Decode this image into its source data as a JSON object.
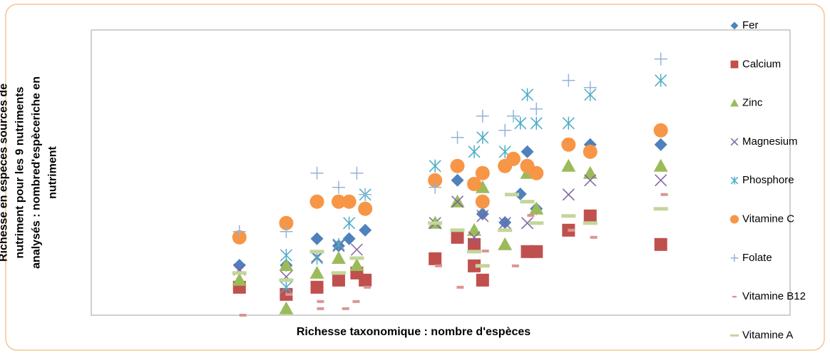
{
  "chart_data": {
    "type": "scatter",
    "xlabel": "Richesse taxonomique : nombre d'espèces",
    "ylabel": [
      "Richesse en espèces sources de",
      "nutriment pour les 9 nutriments",
      "analysés : nombred'espèceriche en",
      "nutriment"
    ],
    "xlim": [
      0,
      100
    ],
    "ylim": [
      0,
      100
    ],
    "grid": false,
    "legend": "right",
    "series": [
      {
        "name": "Fer",
        "color": "#4f81bd",
        "marker": "diamond",
        "x": [
          21.2,
          27.9,
          32.3,
          35.4,
          36.9,
          39.2,
          52.4,
          56.0,
          59.2,
          62.4,
          63.7,
          71.4,
          81.5,
          61.4
        ],
        "values": [
          17.5,
          17.5,
          26.8,
          24.3,
          26.8,
          29.8,
          47.3,
          35.5,
          32.5,
          57.3,
          37.3,
          59.8,
          59.8,
          42.5
        ]
      },
      {
        "name": "Calcium",
        "color": "#c0504d",
        "marker": "square",
        "x": [
          21.2,
          27.9,
          32.3,
          35.4,
          38.0,
          39.2,
          49.2,
          52.4,
          54.8,
          54.8,
          56.0,
          62.4,
          63.7,
          68.3,
          71.4,
          81.5
        ],
        "values": [
          9.8,
          7.3,
          9.8,
          12.3,
          14.8,
          12.3,
          19.8,
          27.3,
          24.8,
          17.3,
          12.3,
          22.3,
          22.3,
          29.8,
          34.8,
          24.8
        ]
      },
      {
        "name": "Zinc",
        "color": "#9bbb59",
        "marker": "triangle",
        "x": [
          21.2,
          27.9,
          27.9,
          32.3,
          35.4,
          38.0,
          49.2,
          52.4,
          54.8,
          56.0,
          59.2,
          62.4,
          63.7,
          68.3,
          71.4,
          81.5
        ],
        "values": [
          12.3,
          17.5,
          2.3,
          14.8,
          20,
          17.5,
          32.3,
          39.8,
          29.8,
          44.8,
          24.8,
          49.8,
          37.3,
          52.3,
          49.8,
          52.3
        ]
      },
      {
        "name": "Magnesium",
        "color": "#8064a2",
        "marker": "x",
        "x": [
          21.2,
          27.9,
          32.3,
          35.4,
          38.0,
          49.2,
          52.4,
          54.8,
          56.0,
          59.2,
          62.4,
          68.3,
          71.4,
          81.5
        ],
        "values": [
          16,
          13.5,
          20.5,
          24.3,
          23,
          32.3,
          39.8,
          27.3,
          34.8,
          32.3,
          32.3,
          42.3,
          47.3,
          47.3
        ]
      },
      {
        "name": "Phosphore",
        "color": "#4bacc6",
        "marker": "star",
        "x": [
          27.9,
          27.9,
          32.3,
          35.4,
          36.9,
          39.2,
          49.2,
          54.8,
          56.0,
          59.2,
          61.4,
          62.4,
          63.7,
          68.3,
          71.4,
          81.5
        ],
        "values": [
          21,
          9.8,
          20,
          24.8,
          32.3,
          42.3,
          52.3,
          57.3,
          62.3,
          57.3,
          67.3,
          77.3,
          67.3,
          67.3,
          77.3,
          82.3
        ]
      },
      {
        "name": "Vitamine C",
        "color": "#f79646",
        "marker": "circle",
        "x": [
          21.2,
          27.9,
          32.3,
          35.4,
          36.9,
          39.2,
          49.2,
          52.4,
          54.8,
          56.0,
          59.2,
          60.4,
          62.4,
          63.7,
          68.3,
          71.4,
          81.5,
          56.0
        ],
        "values": [
          27.3,
          32.3,
          39.8,
          39.8,
          39.8,
          37.3,
          47.3,
          52.3,
          46,
          49.8,
          52.3,
          54.8,
          52.3,
          49.8,
          59.8,
          57.3,
          64.8,
          39.8
        ]
      },
      {
        "name": "Folate",
        "color": "#95b3d7",
        "marker": "plus",
        "x": [
          21.2,
          27.9,
          32.3,
          35.4,
          38.0,
          39.2,
          49.2,
          52.4,
          56.0,
          59.2,
          60.4,
          63.7,
          68.3,
          71.4,
          81.5
        ],
        "values": [
          29.3,
          29.3,
          49.8,
          44.8,
          49.8,
          42.3,
          44.8,
          62.3,
          69.8,
          64.8,
          69.8,
          72.3,
          82.3,
          79.8,
          89.8
        ]
      },
      {
        "name": "Vitamine B12",
        "color": "#d99694",
        "marker": "dash",
        "x": [
          21.7,
          28.3,
          32.8,
          32.8,
          36.4,
          37.9,
          39.5,
          49.7,
          52.8,
          56.4,
          60.7,
          62.9,
          68.7,
          71.9,
          82.0
        ],
        "values": [
          0,
          7.3,
          4.8,
          2.3,
          2.3,
          4.8,
          9.8,
          17.3,
          9.8,
          22.5,
          17.3,
          35,
          29.8,
          27.3,
          42.3
        ]
      },
      {
        "name": "Vitamine A",
        "color": "#c3d69b",
        "marker": "wdash",
        "x": [
          21.2,
          27.9,
          32.3,
          35.4,
          38.0,
          49.2,
          52.4,
          54.8,
          56.0,
          59.2,
          60.2,
          62.4,
          63.7,
          68.3,
          71.4,
          81.5
        ],
        "values": [
          14.8,
          12.3,
          22.3,
          14.8,
          20,
          32.3,
          29.8,
          22.3,
          17.3,
          29.8,
          42.3,
          39.8,
          32.3,
          34.8,
          32.3,
          37.3
        ]
      }
    ]
  }
}
